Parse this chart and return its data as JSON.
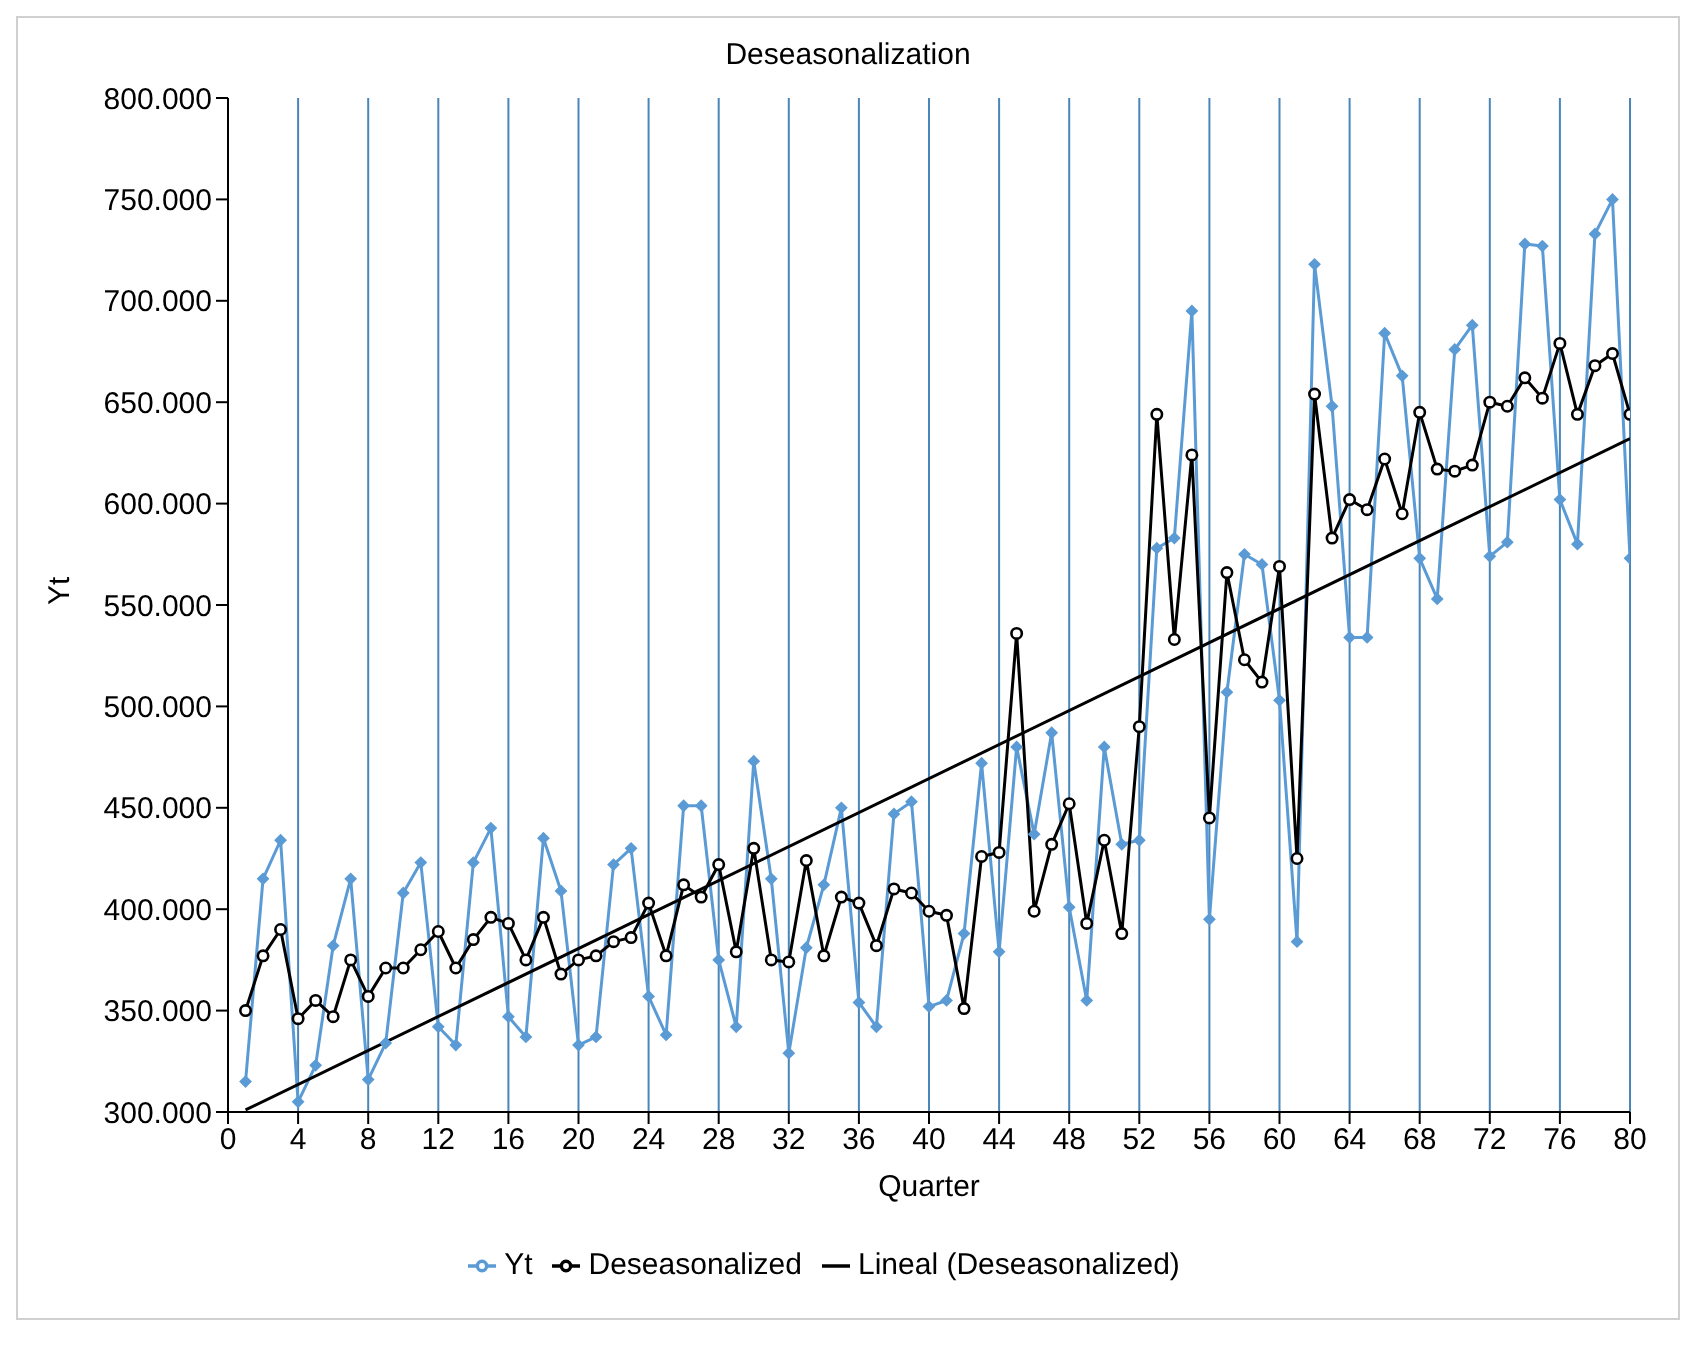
{
  "chart_data": {
    "type": "line",
    "title": "Deseasonalization",
    "xlabel": "Quarter",
    "ylabel": "Yt",
    "x": [
      1,
      2,
      3,
      4,
      5,
      6,
      7,
      8,
      9,
      10,
      11,
      12,
      13,
      14,
      15,
      16,
      17,
      18,
      19,
      20,
      21,
      22,
      23,
      24,
      25,
      26,
      27,
      28,
      29,
      30,
      31,
      32,
      33,
      34,
      35,
      36,
      37,
      38,
      39,
      40,
      41,
      42,
      43,
      44,
      45,
      46,
      47,
      48,
      49,
      50,
      51,
      52,
      53,
      54,
      55,
      56,
      57,
      58,
      59,
      60,
      61,
      62,
      63,
      64,
      65,
      66,
      67,
      68,
      69,
      70,
      71,
      72,
      73,
      74,
      75,
      76,
      77,
      78,
      79,
      80
    ],
    "series": [
      {
        "name": "Yt",
        "color": "#5b9bd5",
        "marker": "diamond",
        "values": [
          315000,
          415000,
          434000,
          305000,
          323000,
          382000,
          415000,
          316000,
          334000,
          408000,
          423000,
          342000,
          333000,
          423000,
          440000,
          347000,
          337000,
          435000,
          409000,
          333000,
          337000,
          422000,
          430000,
          357000,
          338000,
          451000,
          451000,
          375000,
          342000,
          473000,
          415000,
          329000,
          381000,
          412000,
          450000,
          354000,
          342000,
          447000,
          453000,
          352000,
          355000,
          388000,
          472000,
          379000,
          480000,
          437000,
          487000,
          401000,
          355000,
          480000,
          432000,
          434000,
          578000,
          583000,
          695000,
          395000,
          507000,
          575000,
          570000,
          503000,
          384000,
          718000,
          648000,
          534000,
          534000,
          684000,
          663000,
          573000,
          553000,
          676000,
          688000,
          574000,
          581000,
          728000,
          727000,
          602000,
          580000,
          733000,
          750000,
          573000
        ]
      },
      {
        "name": "Deseasonalized",
        "color": "#000000",
        "marker": "circle",
        "values": [
          350000,
          377000,
          390000,
          346000,
          355000,
          347000,
          375000,
          357000,
          371000,
          371000,
          380000,
          389000,
          371000,
          385000,
          396000,
          393000,
          375000,
          396000,
          368000,
          375000,
          377000,
          384000,
          386000,
          403000,
          377000,
          412000,
          406000,
          422000,
          379000,
          430000,
          375000,
          374000,
          424000,
          377000,
          406000,
          403000,
          382000,
          410000,
          408000,
          399000,
          397000,
          351000,
          426000,
          428000,
          536000,
          399000,
          432000,
          452000,
          393000,
          434000,
          388000,
          490000,
          644000,
          533000,
          624000,
          445000,
          566000,
          523000,
          512000,
          569000,
          425000,
          654000,
          583000,
          602000,
          597000,
          622000,
          595000,
          645000,
          617000,
          616000,
          619000,
          650000,
          648000,
          662000,
          652000,
          679000,
          644000,
          668000,
          674000,
          644000
        ]
      },
      {
        "name": "Lineal (Deseasonalized)",
        "color": "#000000",
        "marker": "none",
        "x": [
          1,
          80
        ],
        "values": [
          301000,
          632000
        ]
      }
    ],
    "xlim": [
      0,
      80
    ],
    "xticks": [
      0,
      4,
      8,
      12,
      16,
      20,
      24,
      28,
      32,
      36,
      40,
      44,
      48,
      52,
      56,
      60,
      64,
      68,
      72,
      76,
      80
    ],
    "ylim": [
      300000,
      800000
    ],
    "yticks": [
      {
        "value": 300000,
        "label": "300.000"
      },
      {
        "value": 350000,
        "label": "350.000"
      },
      {
        "value": 400000,
        "label": "400.000"
      },
      {
        "value": 450000,
        "label": "450.000"
      },
      {
        "value": 500000,
        "label": "500.000"
      },
      {
        "value": 550000,
        "label": "550.000"
      },
      {
        "value": 600000,
        "label": "600.000"
      },
      {
        "value": 650000,
        "label": "650.000"
      },
      {
        "value": 700000,
        "label": "700.000"
      },
      {
        "value": 750000,
        "label": "750.000"
      },
      {
        "value": 800000,
        "label": "800.000"
      }
    ],
    "grid": "x",
    "legend": "bottom",
    "line_style": "solid"
  }
}
